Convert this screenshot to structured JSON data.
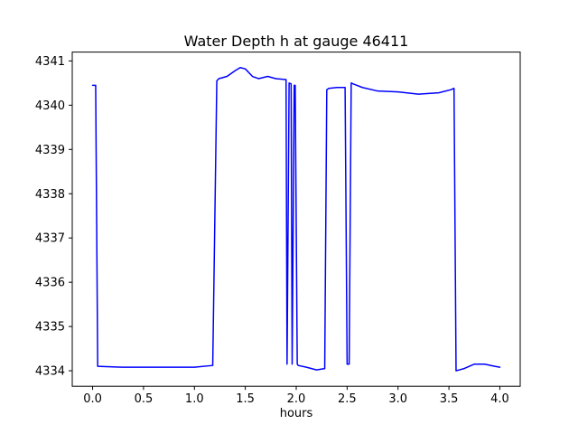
{
  "chart_data": {
    "type": "line",
    "title": "Water Depth h at gauge 46411",
    "xlabel": "hours",
    "ylabel": "",
    "xlim": [
      -0.2,
      4.2
    ],
    "ylim": [
      4333.65,
      4341.2
    ],
    "xticks": [
      0.0,
      0.5,
      1.0,
      1.5,
      2.0,
      2.5,
      3.0,
      3.5,
      4.0
    ],
    "yticks": [
      4334,
      4335,
      4336,
      4337,
      4338,
      4339,
      4340,
      4341
    ],
    "grid": false,
    "legend_position": "none",
    "line_color": "#0000ff",
    "line_width": 1.5,
    "frame_color": "#000000",
    "background": "#ffffff",
    "series": [
      {
        "name": "water-depth-h",
        "x": [
          0.0,
          0.03,
          0.05,
          0.3,
          1.0,
          1.18,
          1.22,
          1.24,
          1.32,
          1.4,
          1.45,
          1.5,
          1.57,
          1.63,
          1.72,
          1.8,
          1.9,
          1.91,
          1.93,
          1.95,
          1.96,
          1.98,
          1.99,
          2.01,
          2.02,
          2.1,
          2.2,
          2.28,
          2.3,
          2.32,
          2.4,
          2.48,
          2.5,
          2.52,
          2.54,
          2.56,
          2.65,
          2.8,
          3.0,
          3.2,
          3.4,
          3.52,
          3.55,
          3.57,
          3.65,
          3.75,
          3.85,
          3.95,
          4.0
        ],
        "y": [
          4340.45,
          4340.45,
          4334.1,
          4334.08,
          4334.08,
          4334.12,
          4340.55,
          4340.6,
          4340.65,
          4340.78,
          4340.85,
          4340.82,
          4340.65,
          4340.6,
          4340.65,
          4340.6,
          4340.58,
          4334.15,
          4340.5,
          4340.48,
          4334.15,
          4340.45,
          4340.45,
          4334.15,
          4334.12,
          4334.08,
          4334.02,
          4334.05,
          4340.35,
          4340.38,
          4340.4,
          4340.4,
          4334.15,
          4334.15,
          4340.5,
          4340.48,
          4340.4,
          4340.32,
          4340.3,
          4340.25,
          4340.28,
          4340.35,
          4340.38,
          4334.0,
          4334.05,
          4334.15,
          4334.15,
          4334.1,
          4334.08
        ]
      }
    ]
  }
}
